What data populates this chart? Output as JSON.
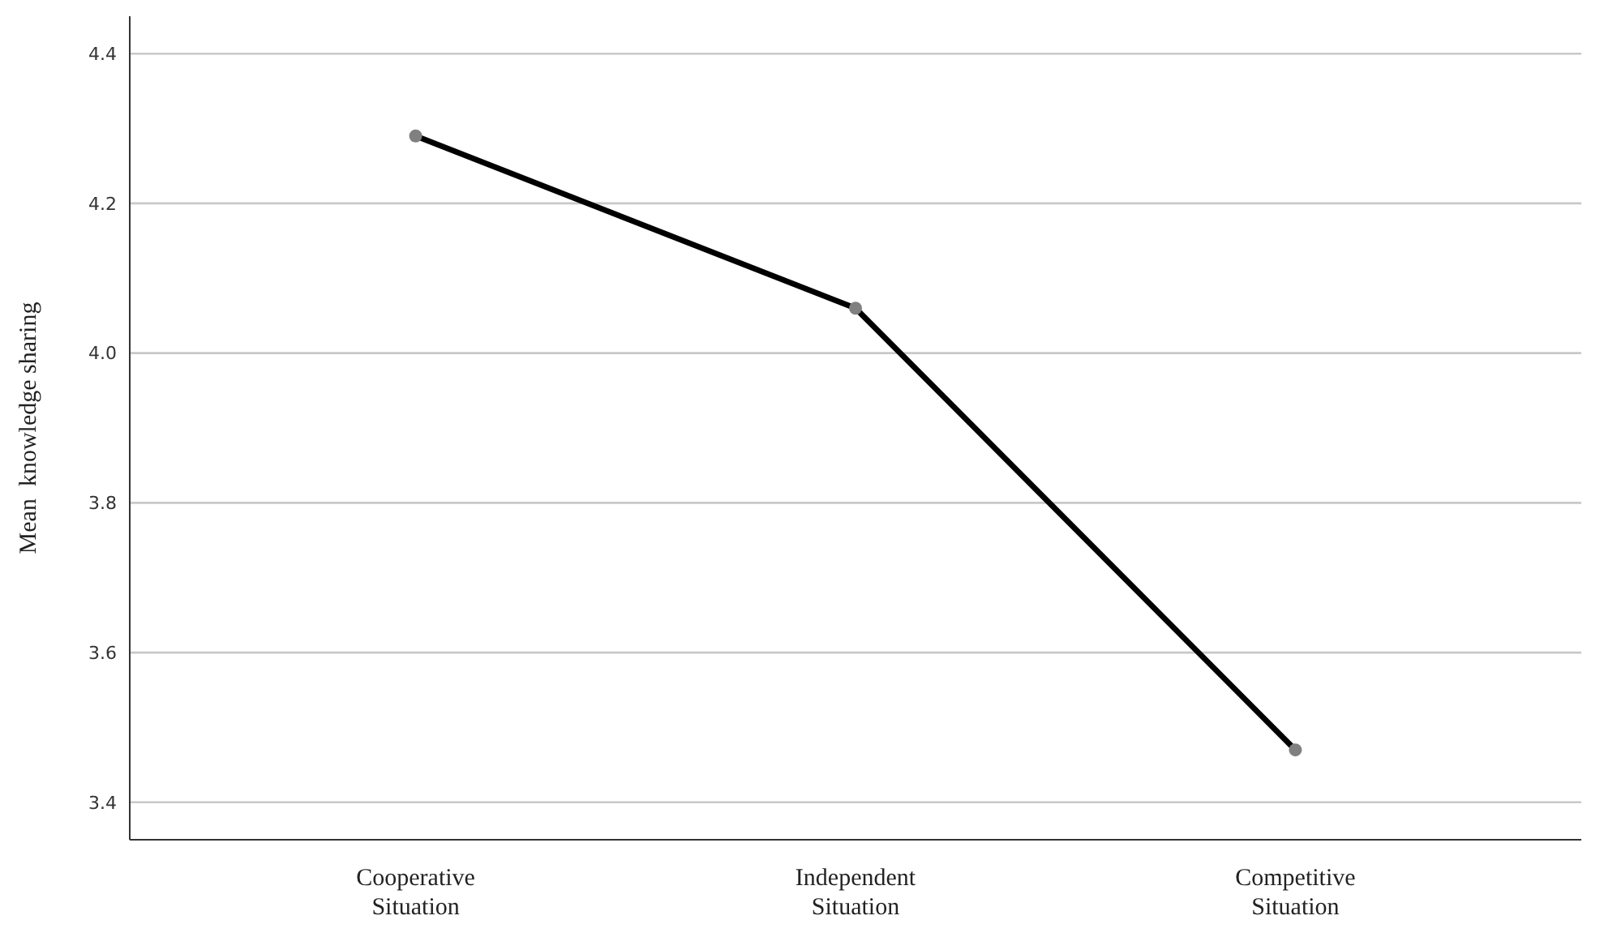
{
  "chart_data": {
    "type": "line",
    "ylabel": "Mean  knowledge sharing",
    "categories": [
      "Cooperative\nSituation",
      "Independent\nSituation",
      "Competitive\nSituation"
    ],
    "series": [
      {
        "color": "#000000",
        "values": [
          4.29,
          4.06,
          3.47
        ]
      }
    ],
    "ylim": [
      3.35,
      4.45
    ],
    "yticks": [
      3.4,
      3.6,
      3.8,
      {
        "value": 4.0,
        "label": "4.0"
      },
      4.2,
      4.4
    ],
    "grid": "y",
    "marker": "circle",
    "line_style": "solid"
  }
}
